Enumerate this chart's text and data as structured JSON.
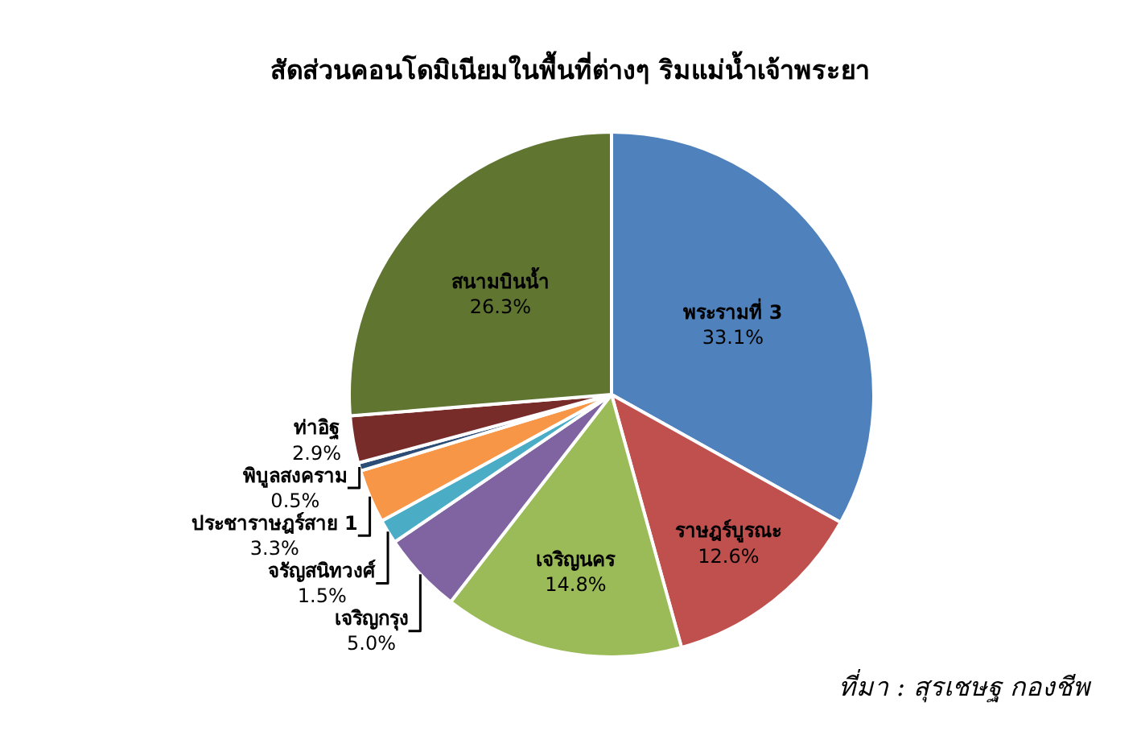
{
  "chart_data": {
    "type": "pie",
    "title": "สัดส่วนคอนโดมิเนียมในพื้นที่ต่างๆ ริมแม่น้ำเจ้าพระยา",
    "categories": [
      "พระรามที่ 3",
      "ราษฎร์บูรณะ",
      "เจริญนคร",
      "เจริญกรุง",
      "จรัญสนิทวงศ์",
      "ประชาราษฎร์สาย 1",
      "พิบูลสงคราม",
      "ท่าอิฐ",
      "สนามบินน้ำ"
    ],
    "values": [
      33.1,
      12.6,
      14.8,
      5.0,
      1.5,
      3.3,
      0.5,
      2.9,
      26.3
    ],
    "value_labels": [
      "33.1%",
      "12.6%",
      "14.8%",
      "5.0%",
      "1.5%",
      "3.3%",
      "0.5%",
      "2.9%",
      "26.3%"
    ],
    "colors": [
      "#4f81bd",
      "#c0504d",
      "#9bbb59",
      "#8064a2",
      "#4bacc6",
      "#f79646",
      "#2c4d75",
      "#772c2a",
      "#5f7530"
    ],
    "legend": false,
    "annotations": [
      "ที่มา : สุรเชษฐ กองชีพ"
    ]
  }
}
